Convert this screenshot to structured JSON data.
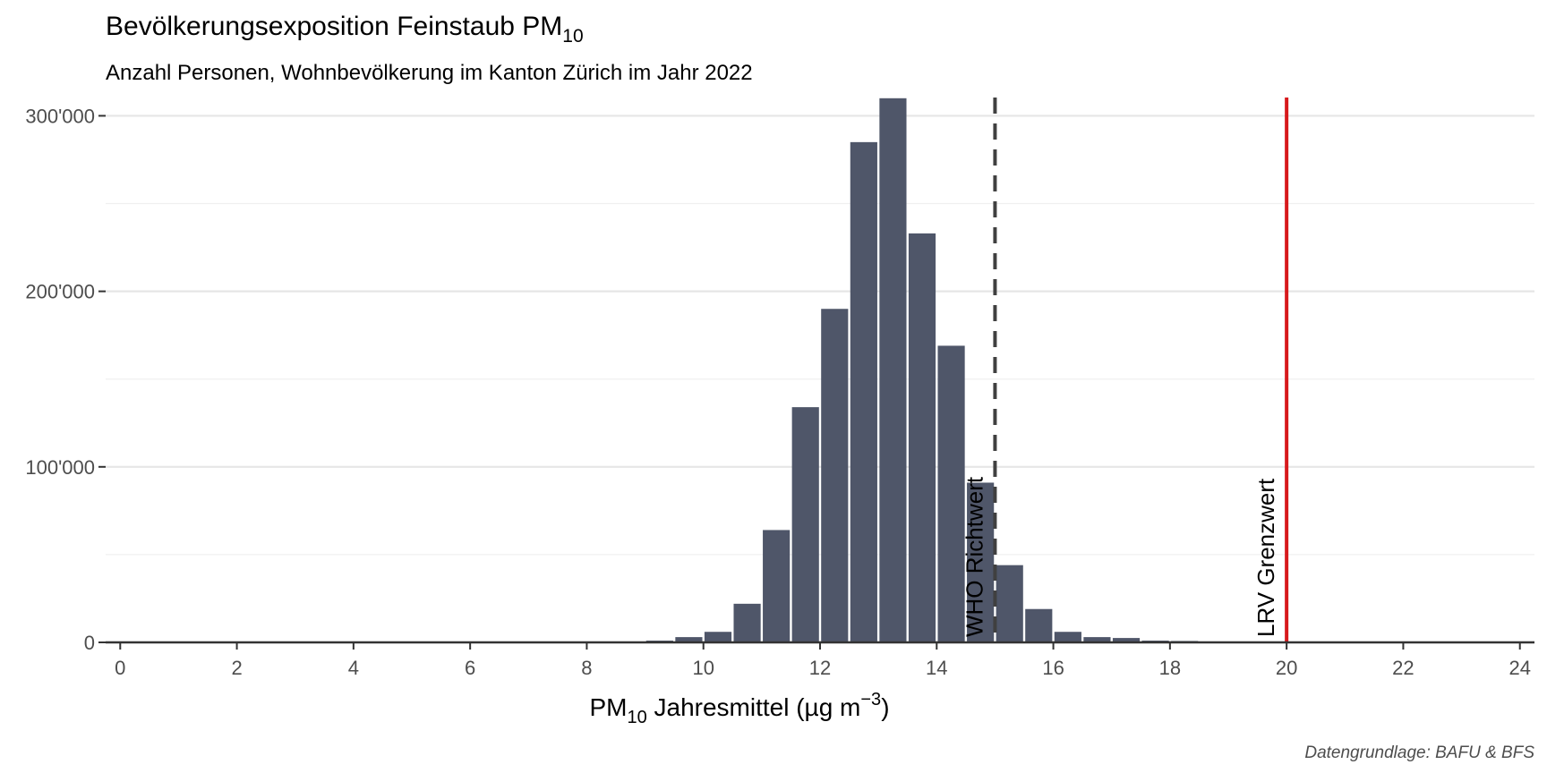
{
  "chart_data": {
    "type": "bar",
    "title_main": "Bevölkerungsexposition Feinstaub PM",
    "title_sub": "10",
    "subtitle": "Anzahl Personen, Wohnbevölkerung im Kanton Zürich im Jahr 2022",
    "xlabel_pre": "PM",
    "xlabel_sub": "10",
    "xlabel_main": " Jahresmittel (µg m",
    "xlabel_sup": "−3",
    "xlabel_post": ")",
    "caption": "Datengrundlage: BAFU & BFS",
    "x": [
      8.75,
      9.25,
      9.75,
      10.25,
      10.75,
      11.25,
      11.75,
      12.25,
      12.75,
      13.25,
      13.75,
      14.25,
      14.75,
      15.25,
      15.75,
      16.25,
      16.75,
      17.25,
      17.75,
      18.25,
      18.75
    ],
    "values": [
      500,
      1000,
      3000,
      6000,
      22000,
      64000,
      134000,
      190000,
      285000,
      310000,
      233000,
      169000,
      91000,
      44000,
      19000,
      6000,
      3000,
      2500,
      1000,
      800,
      500
    ],
    "bar_width": 0.5,
    "bar_color": "#4f5669",
    "xlim": [
      -0.25,
      24.25
    ],
    "ylim": [
      0,
      315000
    ],
    "x_ticks": [
      0,
      2,
      4,
      6,
      8,
      10,
      12,
      14,
      16,
      18,
      20,
      22,
      24
    ],
    "x_tick_labels": [
      "0",
      "2",
      "4",
      "6",
      "8",
      "10",
      "12",
      "14",
      "16",
      "18",
      "20",
      "22",
      "24"
    ],
    "y_ticks": [
      0,
      100000,
      200000,
      300000
    ],
    "y_tick_labels": [
      "0",
      "100'000",
      "200'000",
      "300'000"
    ],
    "grid": true,
    "reference_lines": [
      {
        "x": 15,
        "label": "WHO Richtwert",
        "style": "dashed",
        "color": "#404040"
      },
      {
        "x": 20,
        "label": "LRV Grenzwert",
        "style": "solid",
        "color": "#d7191c"
      }
    ]
  }
}
